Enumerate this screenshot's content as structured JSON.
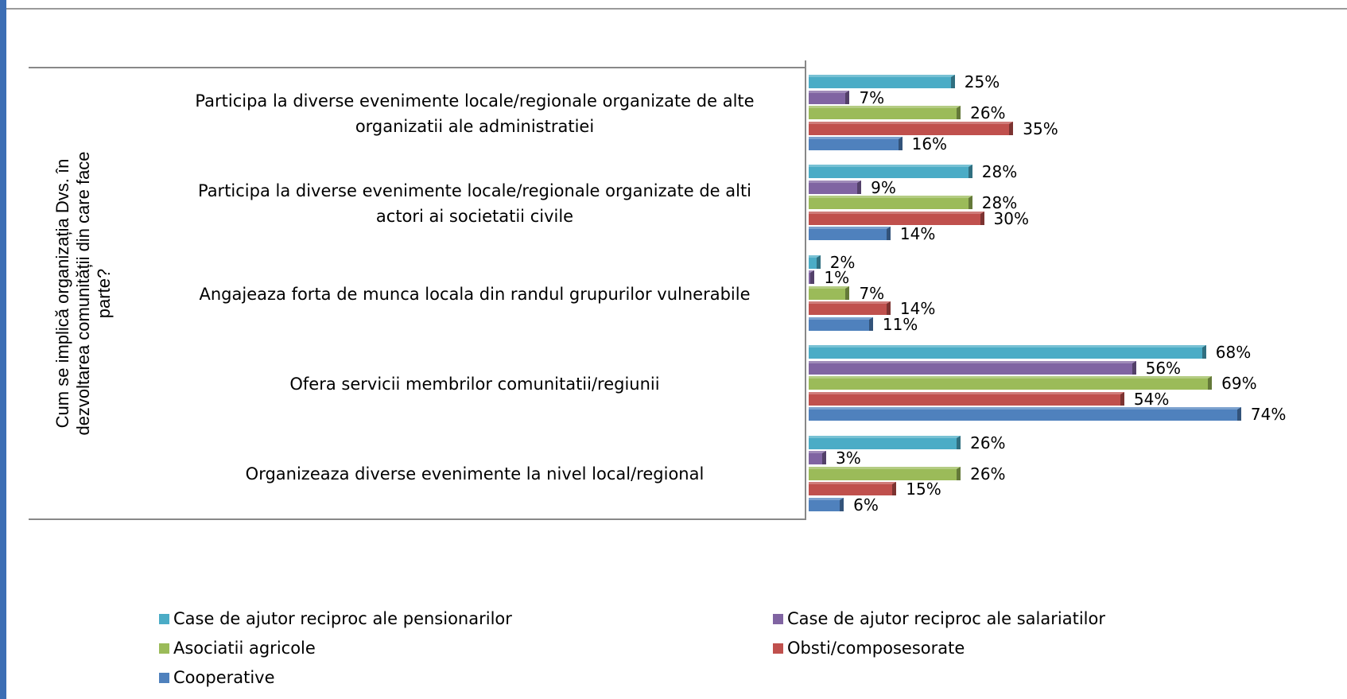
{
  "chart_data": {
    "type": "bar",
    "orientation": "horizontal",
    "axis_title": "Cum se implică organizația Dvs. în dezvoltarea comunității din care face parte?",
    "categories": [
      "Participa la diverse evenimente locale/regionale organizate de alte organizatii  ale administratiei",
      "Participa la diverse evenimente locale/regionale organizate de alti actori ai societatii civile",
      "Angajeaza forta de munca locala din randul grupurilor vulnerabile",
      "Ofera servicii membrilor comunitatii/regiunii",
      "Organizeaza diverse evenimente la nivel local/regional"
    ],
    "series": [
      {
        "name": "Case de ajutor reciproc ale pensionarilor",
        "color": "#4bacc6",
        "values": [
          25,
          28,
          2,
          68,
          26
        ],
        "value_labels": [
          "25%",
          "28%",
          "2%",
          "68%",
          "26%"
        ]
      },
      {
        "name": "Case de ajutor reciproc ale salariatilor",
        "color": "#8064a2",
        "values": [
          7,
          9,
          1,
          56,
          3
        ],
        "value_labels": [
          "7%",
          "9%",
          "1%",
          "56%",
          "3%"
        ]
      },
      {
        "name": "Asociatii agricole",
        "color": "#9bbb59",
        "values": [
          26,
          28,
          7,
          69,
          26
        ],
        "value_labels": [
          "26%",
          "28%",
          "7%",
          "69%",
          "26%"
        ]
      },
      {
        "name": "Obsti/composesorate",
        "color": "#c0504d",
        "values": [
          35,
          30,
          14,
          54,
          15
        ],
        "value_labels": [
          "35%",
          "30%",
          "14%",
          "54%",
          "15%"
        ]
      },
      {
        "name": "Cooperative",
        "color": "#4f81bd",
        "values": [
          16,
          14,
          11,
          74,
          6
        ],
        "value_labels": [
          "16%",
          "14%",
          "11%",
          "74%",
          "6%"
        ]
      }
    ],
    "legend": "bottom"
  }
}
